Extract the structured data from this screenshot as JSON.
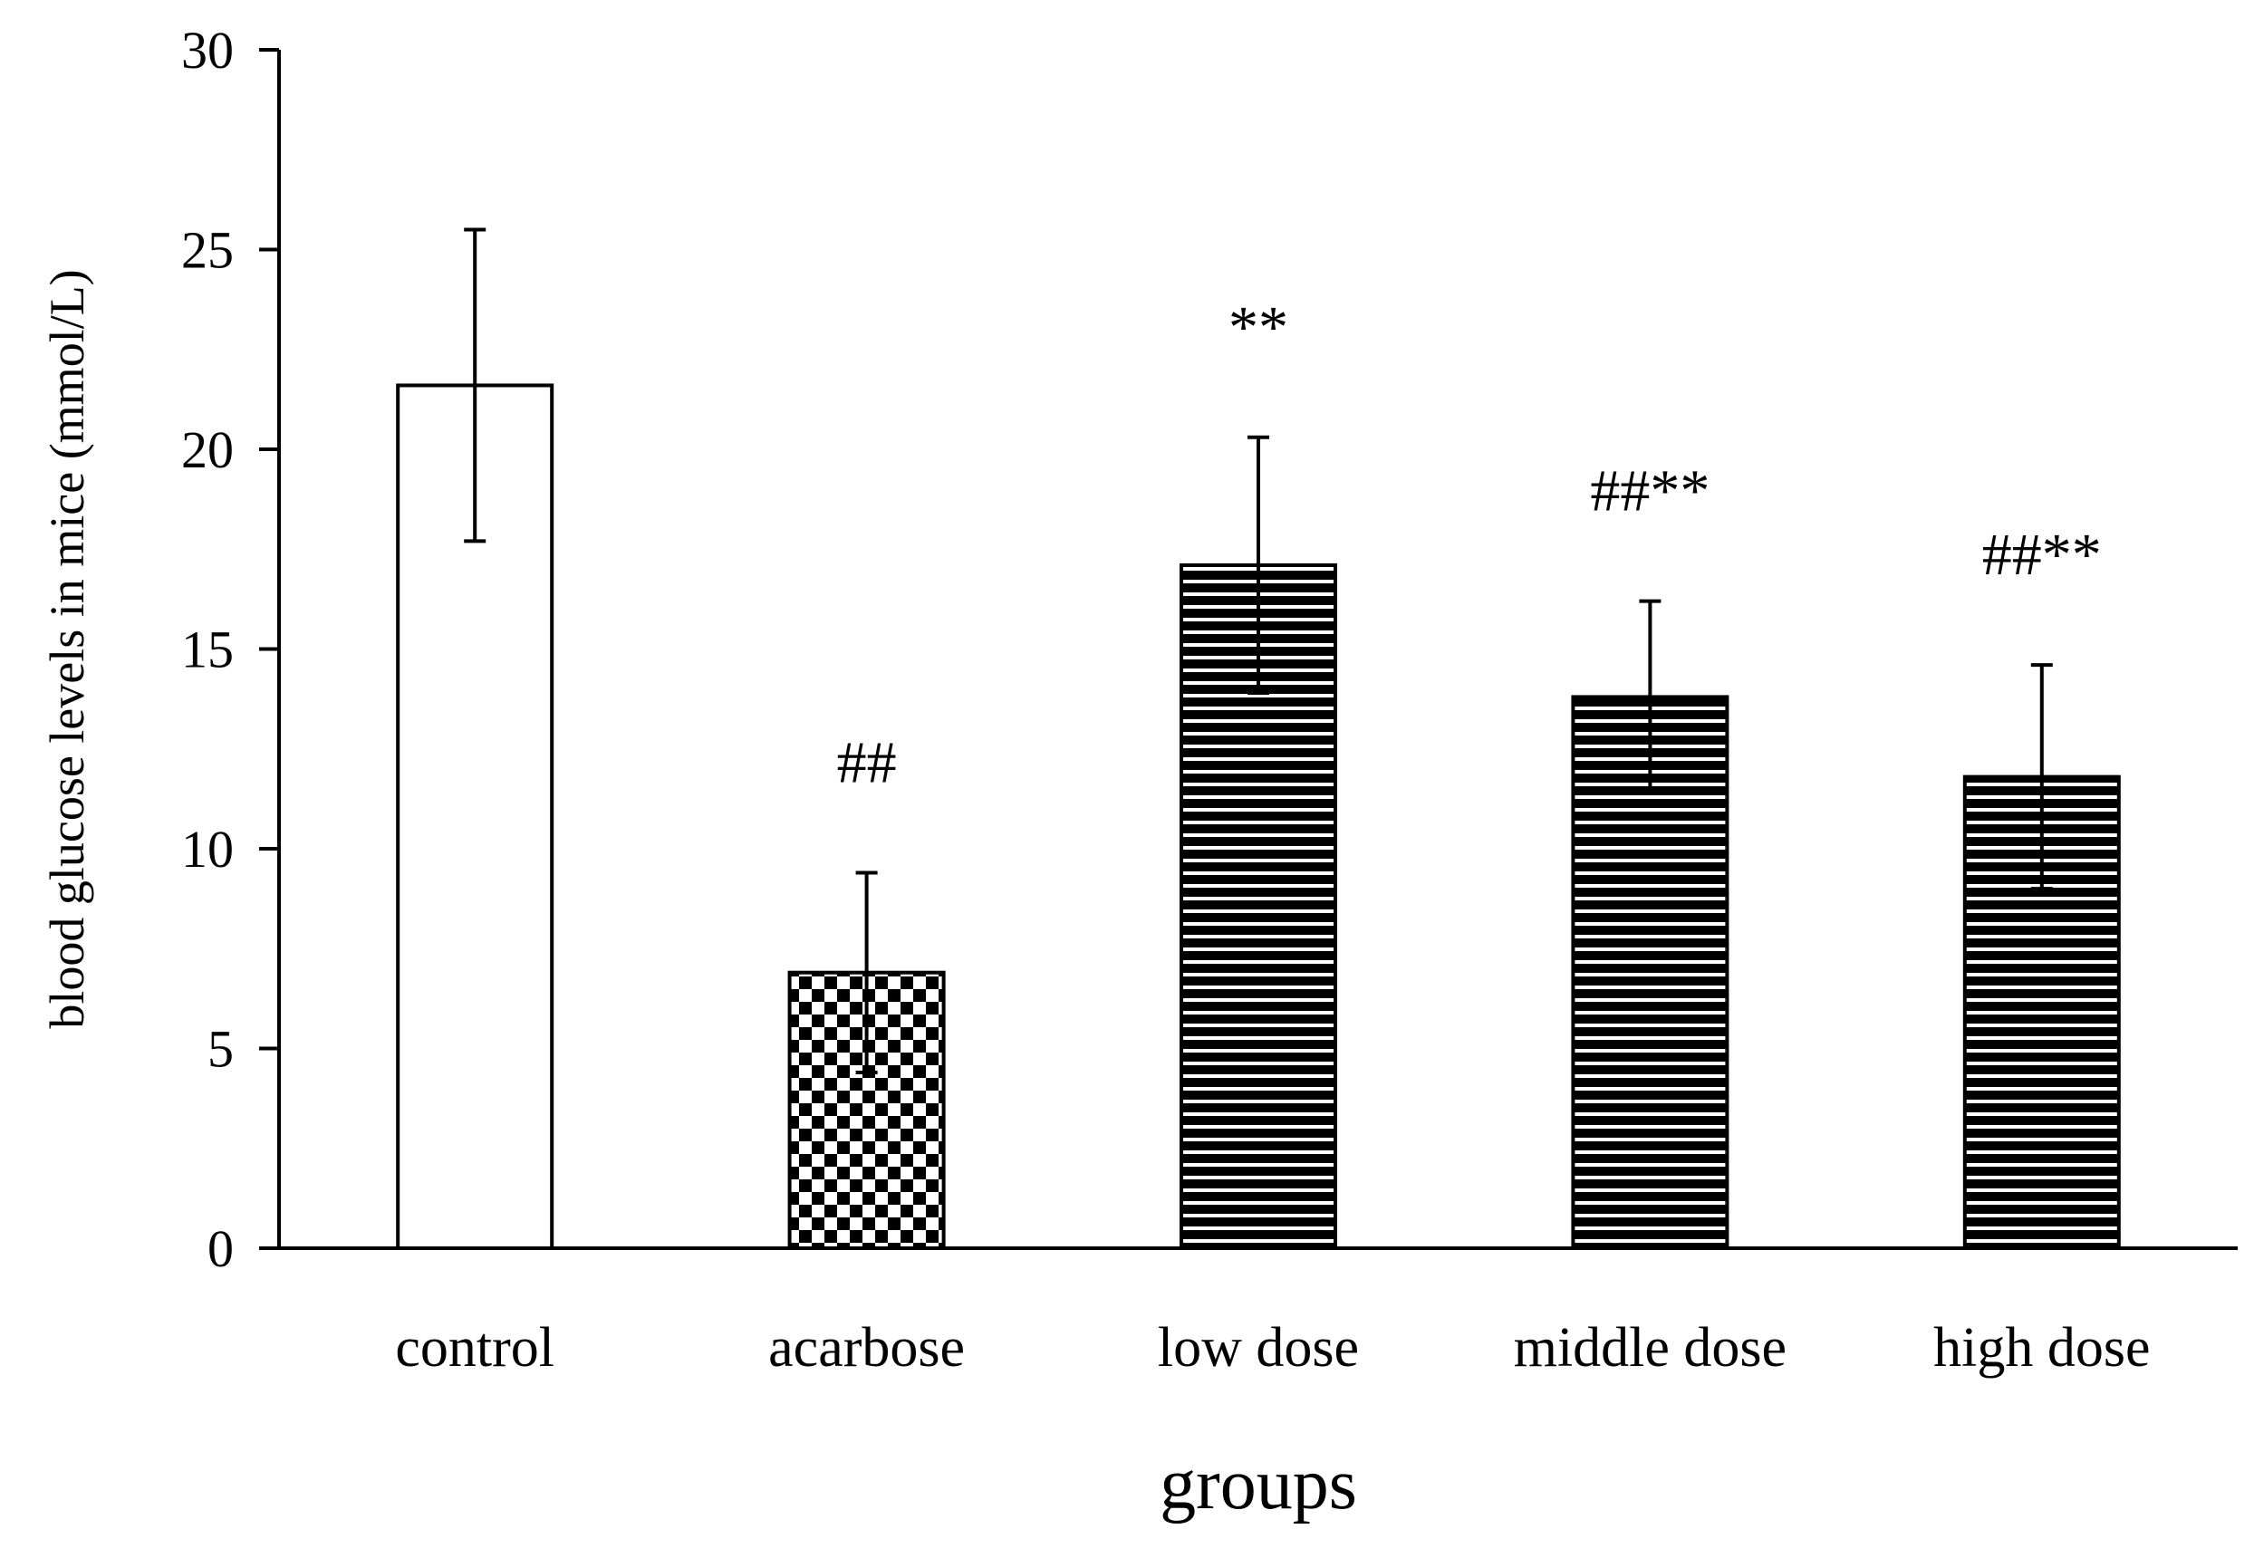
{
  "chart_data": {
    "type": "bar",
    "title": "",
    "xlabel": "groups",
    "ylabel": "blood glucose levels in mice (mmol/L)",
    "ylim": [
      0,
      30
    ],
    "yticks": [
      0,
      5,
      10,
      15,
      20,
      25,
      30
    ],
    "categories": [
      "control",
      "acarbose",
      "low dose",
      "middle dose",
      "high dose"
    ],
    "values": [
      21.6,
      6.9,
      17.1,
      13.8,
      11.8
    ],
    "errors": [
      3.9,
      2.5,
      3.2,
      2.4,
      2.8
    ],
    "annotations": [
      "",
      "##",
      "**",
      "##**",
      "##**"
    ],
    "fill_patterns": [
      "white",
      "checker",
      "hstripes",
      "hstripes",
      "hstripes"
    ],
    "grid": false,
    "legend": "none",
    "colors": {
      "bar_fill": "#000000",
      "bar_background": "#ffffff",
      "axis": "#000000"
    }
  }
}
